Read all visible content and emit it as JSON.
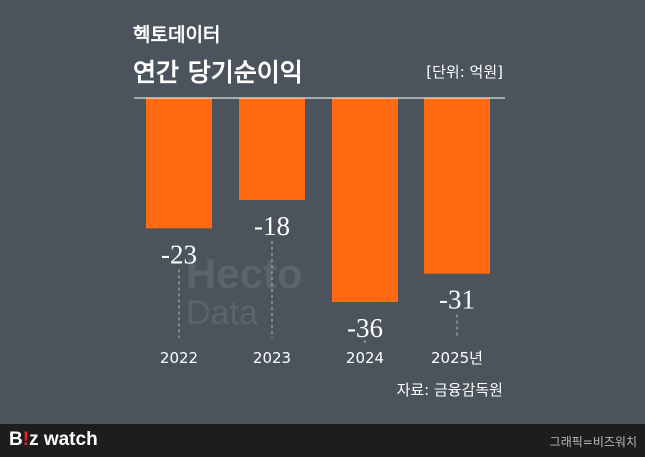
{
  "header": {
    "subtitle": "헥토데이터",
    "title": "연간 당기순이익",
    "unit": "[단위: 억원]"
  },
  "watermark": {
    "line1": "Hecto",
    "line2": "Data"
  },
  "source": "자료: 금융감독원",
  "footer": {
    "brand_b": "B",
    "brand_i": "!",
    "brand_rest": "z watch",
    "credit": "그래픽=비즈워치"
  },
  "colors": {
    "background": "#4b545c",
    "bar": "#ff6a13",
    "baseline": "#ffffff",
    "footer": "#1d1d1d"
  },
  "chart_data": {
    "type": "bar",
    "categories": [
      "2022",
      "2023",
      "2024",
      "2025년"
    ],
    "values": [
      -23,
      -18,
      -36,
      -31
    ],
    "value_labels": [
      "-23",
      "-18",
      "-36",
      "-31"
    ],
    "title": "연간 당기순이익",
    "ylabel": "[단위: 억원]",
    "ylim": [
      -36,
      0
    ],
    "grid": false
  }
}
